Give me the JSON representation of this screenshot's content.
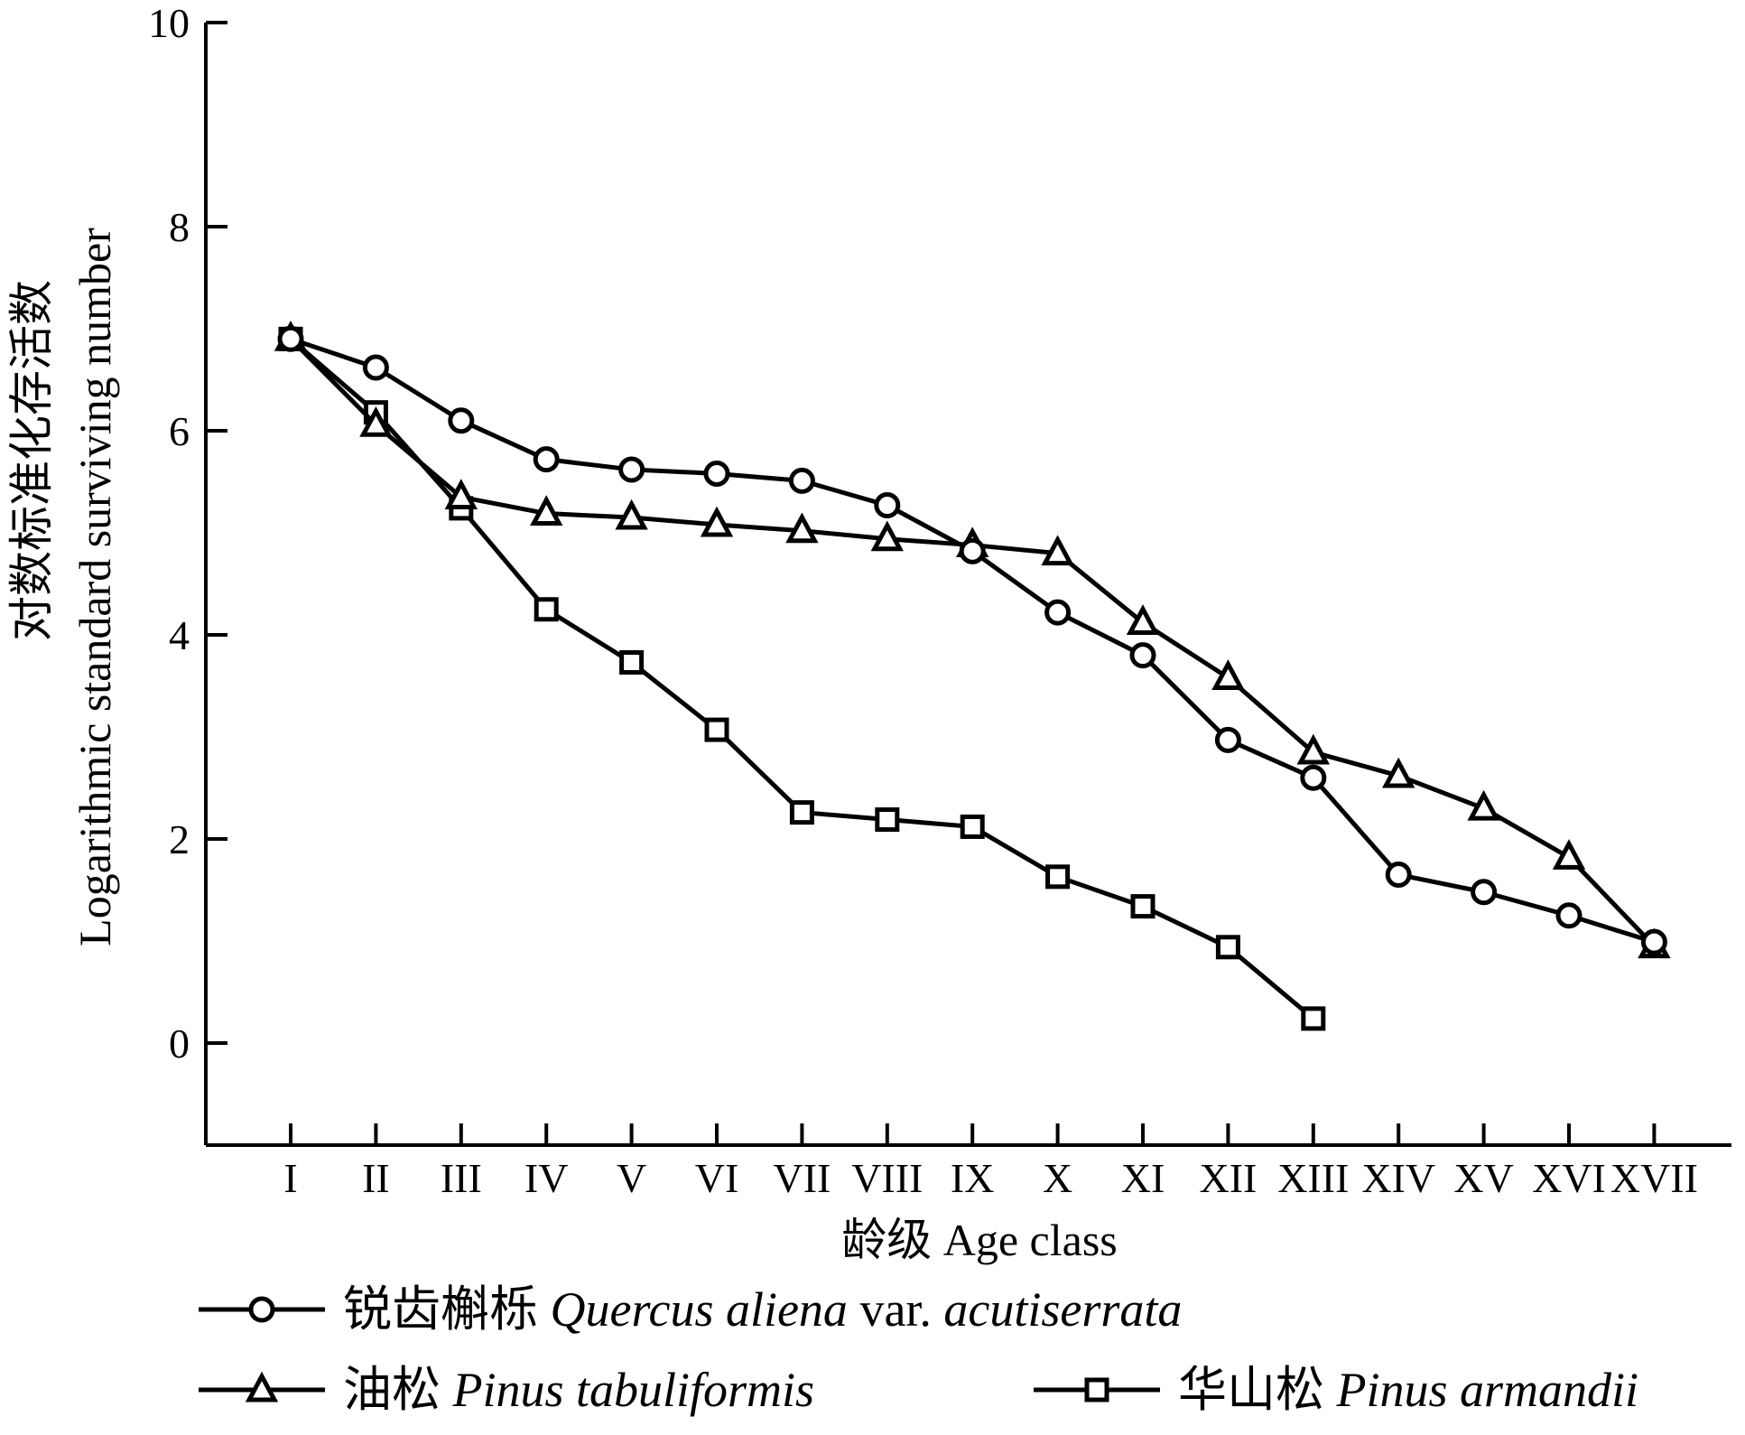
{
  "chart_data": {
    "type": "line",
    "xlabel": "龄级 Age class",
    "ylabel_cn": "对数标准化存活数",
    "ylabel_en": "Logarithmic standard surviving number",
    "ylim": [
      -1,
      10
    ],
    "yticks": [
      0,
      2,
      4,
      6,
      8,
      10
    ],
    "categories": [
      "I",
      "II",
      "III",
      "IV",
      "V",
      "VI",
      "VII",
      "VIII",
      "IX",
      "X",
      "XI",
      "XII",
      "XIII",
      "XIV",
      "XV",
      "XVI",
      "XVII"
    ],
    "grid": false,
    "legend_position": "bottom",
    "series": [
      {
        "name_cn": "锐齿槲栎",
        "name_latin": "Quercus aliena",
        "name_plain": " var. ",
        "name_latin2": "acutiserrata",
        "marker": "circle",
        "values": [
          6.9,
          6.62,
          6.1,
          5.72,
          5.62,
          5.58,
          5.51,
          5.27,
          4.82,
          4.22,
          3.8,
          2.97,
          2.6,
          1.65,
          1.48,
          1.25,
          0.99
        ]
      },
      {
        "name_cn": "油松",
        "name_latin": "Pinus tabuliformis",
        "name_plain": "",
        "name_latin2": "",
        "marker": "triangle",
        "values": [
          6.9,
          6.06,
          5.35,
          5.19,
          5.15,
          5.08,
          5.02,
          4.94,
          4.88,
          4.8,
          4.12,
          3.58,
          2.85,
          2.62,
          2.3,
          1.82,
          0.95
        ]
      },
      {
        "name_cn": "华山松",
        "name_latin": "Pinus armandii",
        "name_plain": "",
        "name_latin2": "",
        "marker": "square",
        "values": [
          6.9,
          6.18,
          5.24,
          4.25,
          3.73,
          3.07,
          2.26,
          2.19,
          2.12,
          1.63,
          1.34,
          0.94,
          0.24,
          null,
          null,
          null,
          null
        ]
      }
    ]
  }
}
